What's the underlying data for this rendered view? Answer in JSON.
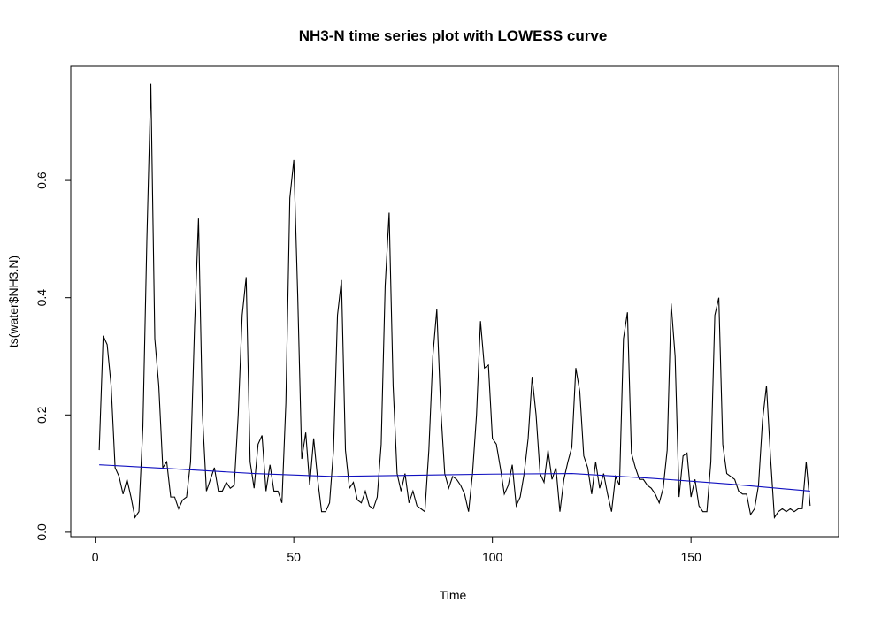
{
  "chart_data": {
    "type": "line",
    "title": "NH3-N time series plot with LOWESS curve",
    "x_label": "Time",
    "y_label": "ts(water$NH3.N)",
    "xlim": [
      -6.16,
      187.16
    ],
    "ylim": [
      -0.0077,
      0.7947
    ],
    "xticks": [
      0,
      50,
      100,
      150
    ],
    "yticks": [
      {
        "value": 0,
        "label": "0.0"
      },
      0.2,
      0.4,
      0.6
    ],
    "series": [
      {
        "color": "#000000",
        "x": [
          1,
          2,
          3,
          4,
          5,
          6,
          7,
          8,
          9,
          10,
          11,
          12,
          13,
          14,
          15,
          16,
          17,
          18,
          19,
          20,
          21,
          22,
          23,
          24,
          25,
          26,
          27,
          28,
          29,
          30,
          31,
          32,
          33,
          34,
          35,
          36,
          37,
          38,
          39,
          40,
          41,
          42,
          43,
          44,
          45,
          46,
          47,
          48,
          49,
          50,
          51,
          52,
          53,
          54,
          55,
          56,
          57,
          58,
          59,
          60,
          61,
          62,
          63,
          64,
          65,
          66,
          67,
          68,
          69,
          70,
          71,
          72,
          73,
          74,
          75,
          76,
          77,
          78,
          79,
          80,
          81,
          82,
          83,
          84,
          85,
          86,
          87,
          88,
          89,
          90,
          91,
          92,
          93,
          94,
          95,
          96,
          97,
          98,
          99,
          100,
          101,
          102,
          103,
          104,
          105,
          106,
          107,
          108,
          109,
          110,
          111,
          112,
          113,
          114,
          115,
          116,
          117,
          118,
          119,
          120,
          121,
          122,
          123,
          124,
          125,
          126,
          127,
          128,
          129,
          130,
          131,
          132,
          133,
          134,
          135,
          136,
          137,
          138,
          139,
          140,
          141,
          142,
          143,
          144,
          145,
          146,
          147,
          148,
          149,
          150,
          151,
          152,
          153,
          154,
          155,
          156,
          157,
          158,
          159,
          160,
          161,
          162,
          163,
          164,
          165,
          166,
          167,
          168,
          169,
          170,
          171,
          172,
          173,
          174,
          175,
          176,
          177,
          178,
          179,
          180
        ],
        "values": [
          0.14,
          0.335,
          0.32,
          0.25,
          0.11,
          0.095,
          0.065,
          0.09,
          0.06,
          0.025,
          0.035,
          0.18,
          0.5,
          0.765,
          0.33,
          0.25,
          0.11,
          0.12,
          0.06,
          0.06,
          0.04,
          0.055,
          0.06,
          0.12,
          0.35,
          0.535,
          0.2,
          0.07,
          0.09,
          0.11,
          0.07,
          0.07,
          0.085,
          0.075,
          0.08,
          0.2,
          0.37,
          0.435,
          0.12,
          0.075,
          0.15,
          0.165,
          0.07,
          0.115,
          0.07,
          0.07,
          0.05,
          0.22,
          0.57,
          0.635,
          0.4,
          0.125,
          0.17,
          0.08,
          0.16,
          0.09,
          0.035,
          0.035,
          0.05,
          0.14,
          0.37,
          0.43,
          0.14,
          0.075,
          0.085,
          0.055,
          0.05,
          0.07,
          0.045,
          0.04,
          0.06,
          0.15,
          0.42,
          0.545,
          0.25,
          0.1,
          0.07,
          0.1,
          0.05,
          0.07,
          0.045,
          0.04,
          0.035,
          0.14,
          0.3,
          0.38,
          0.21,
          0.1,
          0.075,
          0.095,
          0.09,
          0.08,
          0.065,
          0.035,
          0.1,
          0.2,
          0.36,
          0.28,
          0.285,
          0.16,
          0.15,
          0.11,
          0.065,
          0.08,
          0.115,
          0.045,
          0.06,
          0.1,
          0.16,
          0.265,
          0.2,
          0.1,
          0.085,
          0.14,
          0.09,
          0.11,
          0.035,
          0.09,
          0.12,
          0.145,
          0.28,
          0.24,
          0.13,
          0.11,
          0.065,
          0.12,
          0.075,
          0.1,
          0.065,
          0.035,
          0.095,
          0.08,
          0.33,
          0.375,
          0.135,
          0.11,
          0.09,
          0.09,
          0.08,
          0.075,
          0.065,
          0.05,
          0.075,
          0.14,
          0.39,
          0.3,
          0.06,
          0.13,
          0.135,
          0.06,
          0.09,
          0.045,
          0.035,
          0.035,
          0.12,
          0.37,
          0.4,
          0.15,
          0.1,
          0.095,
          0.09,
          0.07,
          0.065,
          0.065,
          0.03,
          0.04,
          0.08,
          0.19,
          0.25,
          0.13,
          0.025,
          0.035,
          0.04,
          0.035,
          0.04,
          0.035,
          0.04,
          0.04,
          0.12,
          0.045
        ]
      },
      {
        "color": "#1010c0",
        "x": [
          1,
          20,
          40,
          60,
          80,
          100,
          120,
          140,
          160,
          180
        ],
        "values": [
          0.115,
          0.108,
          0.1,
          0.095,
          0.097,
          0.099,
          0.1,
          0.092,
          0.082,
          0.07
        ]
      }
    ]
  }
}
